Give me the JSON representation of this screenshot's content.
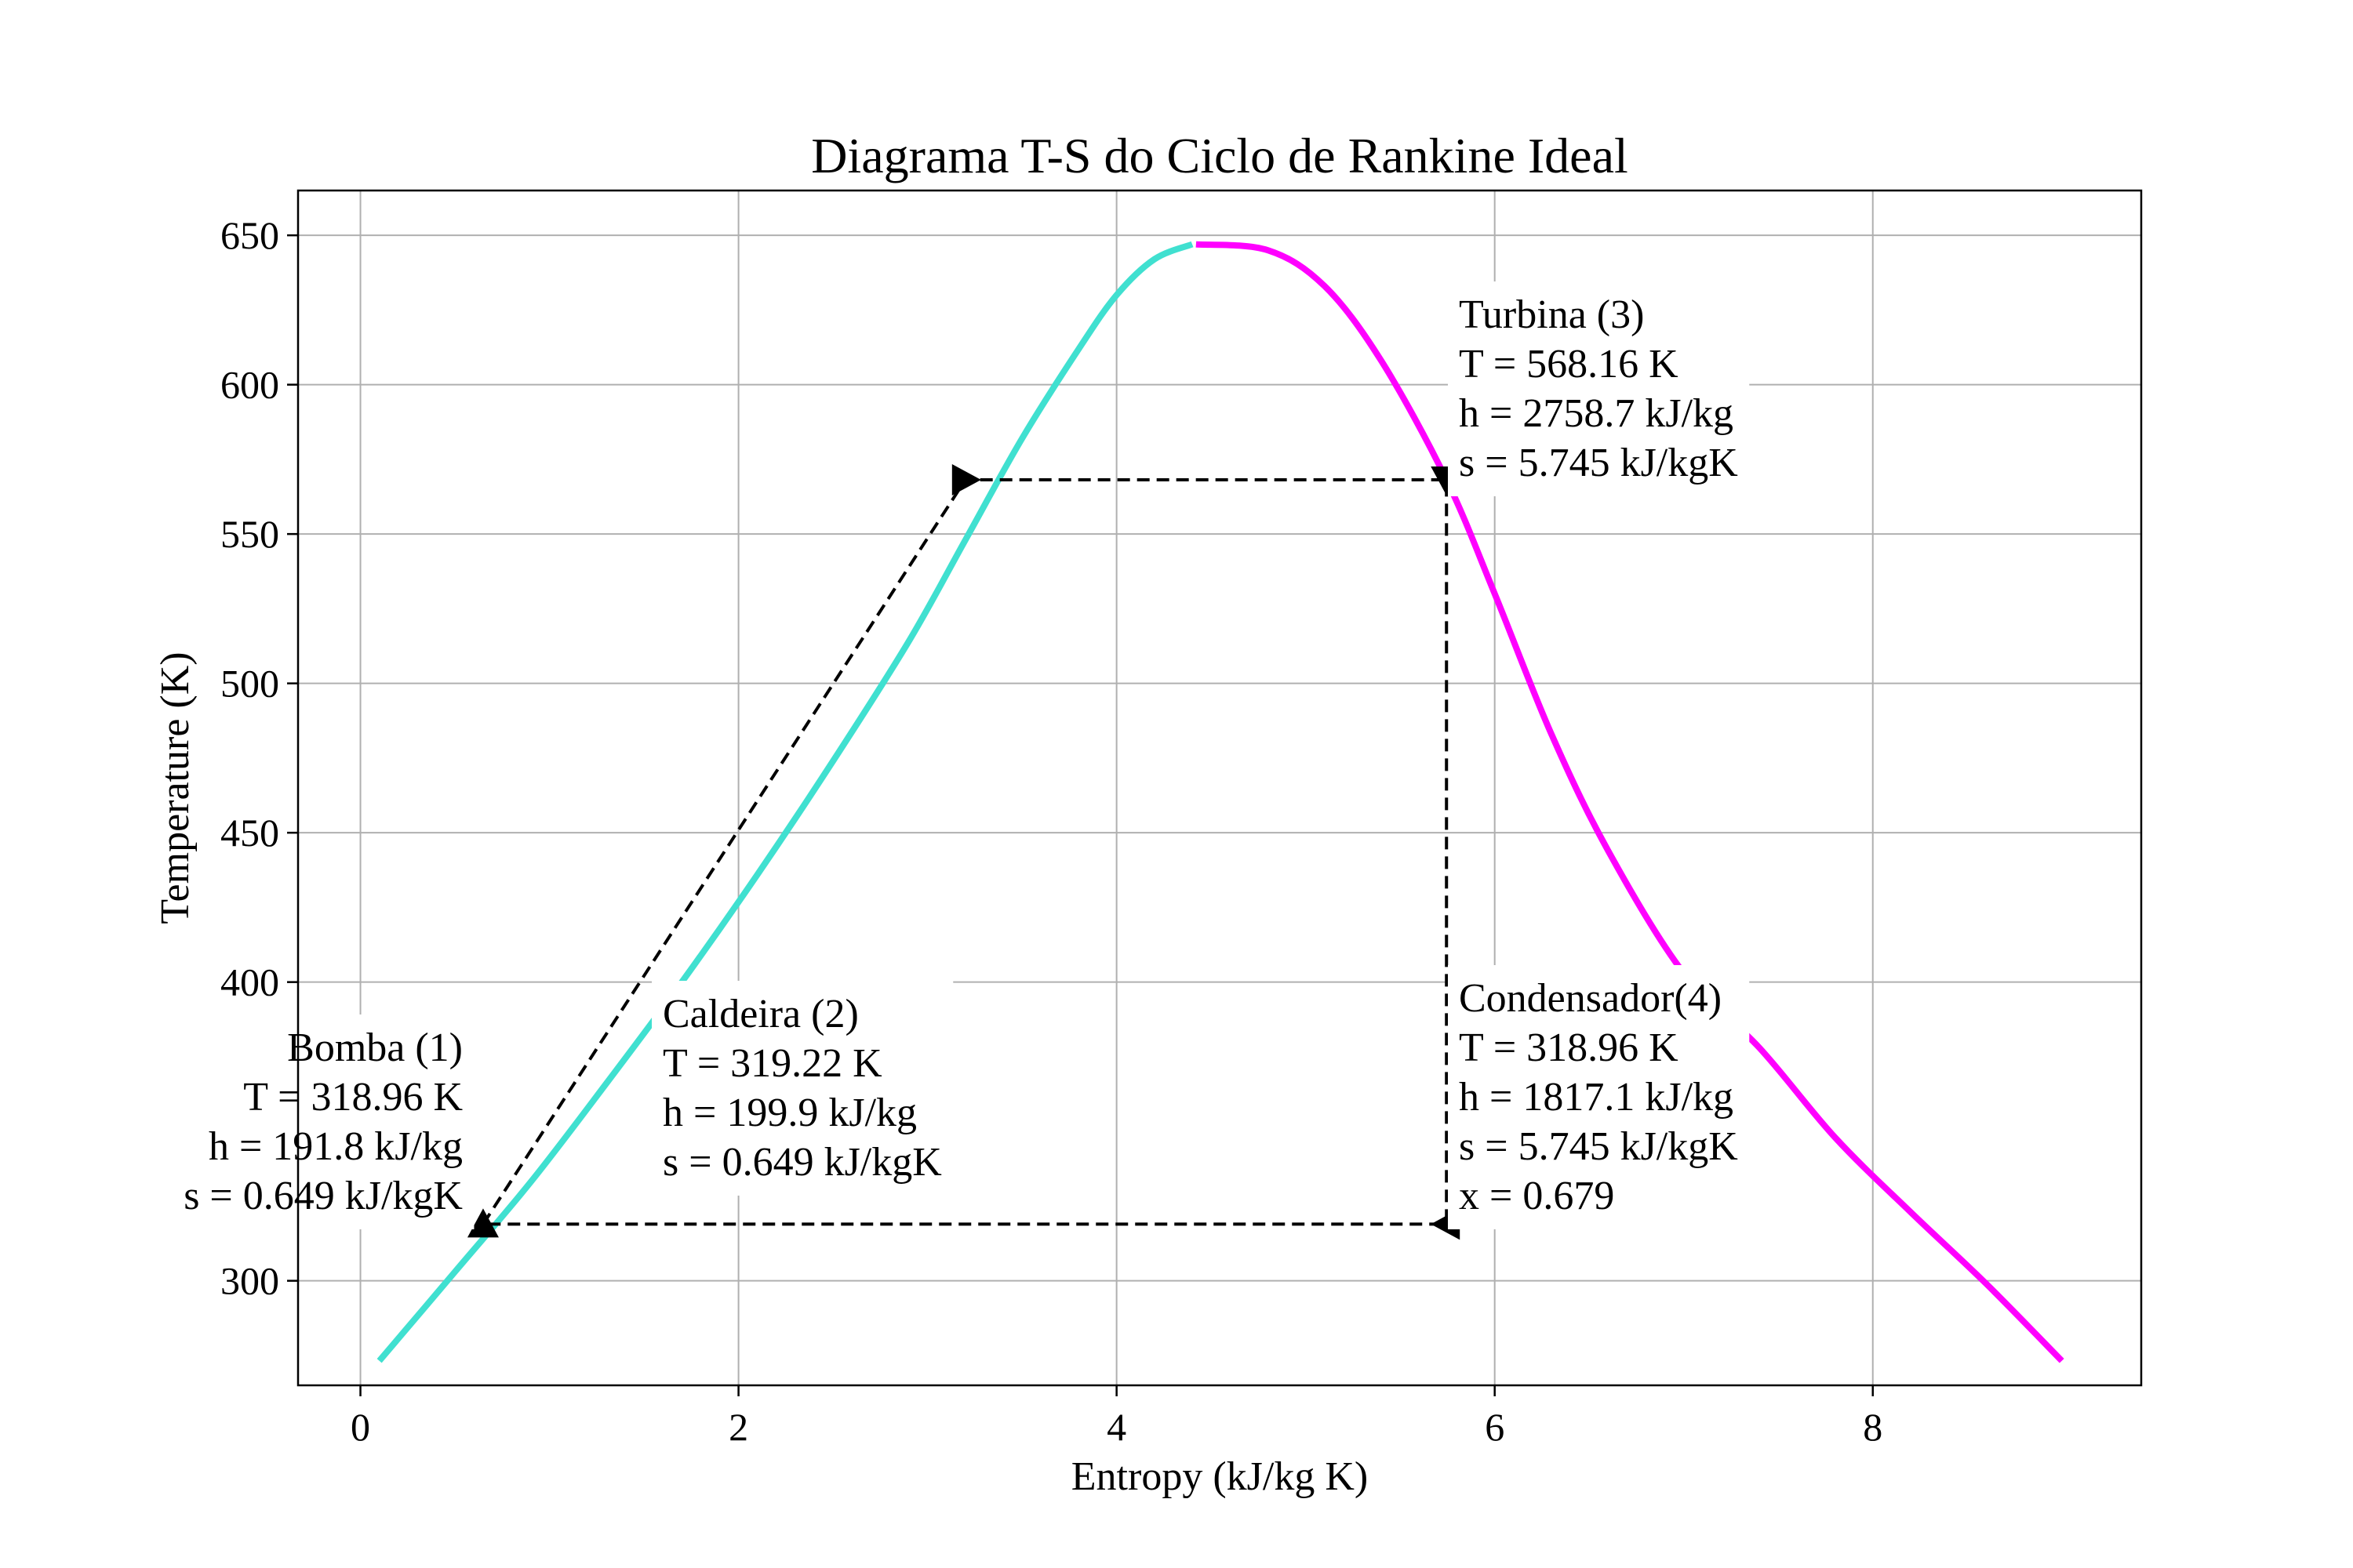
{
  "chart_data": {
    "type": "line",
    "title": "Diagrama T-S do Ciclo de Rankine Ideal",
    "xlabel": "Entropy (kJ/kg K)",
    "ylabel": "Temperature (K)",
    "xlim": [
      -0.33,
      9.42
    ],
    "ylim": [
      265,
      665
    ],
    "xticks": [
      0,
      2,
      4,
      6,
      8
    ],
    "yticks": [
      300,
      400,
      450,
      500,
      550,
      600,
      650
    ],
    "grid": true,
    "series": [
      {
        "role": "saturated-liquid",
        "color": "#40e0d0",
        "points": [
          [
            0.1,
            273.2
          ],
          [
            0.5,
            303
          ],
          [
            0.9,
            333
          ],
          [
            1.3,
            366
          ],
          [
            1.7,
            400
          ],
          [
            2.1,
            436
          ],
          [
            2.5,
            474
          ],
          [
            2.9,
            514
          ],
          [
            3.2,
            548
          ],
          [
            3.5,
            582
          ],
          [
            3.8,
            612
          ],
          [
            4.0,
            630
          ],
          [
            4.2,
            642
          ],
          [
            4.4,
            647
          ]
        ]
      },
      {
        "role": "saturated-vapor",
        "color": "#ff00ff",
        "points": [
          [
            4.42,
            647
          ],
          [
            4.8,
            645
          ],
          [
            5.1,
            633
          ],
          [
            5.4,
            608
          ],
          [
            5.745,
            568.16
          ],
          [
            6.0,
            530
          ],
          [
            6.3,
            483
          ],
          [
            6.6,
            444
          ],
          [
            7.0,
            403
          ],
          [
            7.4,
            378
          ],
          [
            7.8,
            348
          ],
          [
            8.2,
            323
          ],
          [
            8.6,
            299
          ],
          [
            9.0,
            273.2
          ]
        ]
      }
    ],
    "cycle": {
      "color": "#000000",
      "line_style": "dashed",
      "points": [
        {
          "s": 0.649,
          "T": 318.96,
          "marker": "triangle-up"
        },
        {
          "s": 3.2,
          "T": 568.16,
          "marker": "triangle-right"
        },
        {
          "s": 5.745,
          "T": 568.16,
          "marker": "triangle-down"
        },
        {
          "s": 5.745,
          "T": 318.96,
          "marker": "triangle-left"
        },
        {
          "s": 0.649,
          "T": 318.96
        }
      ]
    },
    "annotations": [
      {
        "key": "bomba",
        "align": "end",
        "lines": [
          "Bomba (1)",
          "T = 318.96 K",
          "h = 191.8 kJ/kg",
          "s = 0.649 kJ/kgK"
        ]
      },
      {
        "key": "caldeira",
        "align": "start",
        "lines": [
          "Caldeira (2)",
          "T = 319.22 K",
          "h = 199.9 kJ/kg",
          "s = 0.649 kJ/kgK"
        ]
      },
      {
        "key": "turbina",
        "align": "start",
        "lines": [
          "Turbina (3)",
          "T = 568.16 K",
          "h = 2758.7 kJ/kg",
          "s = 5.745 kJ/kgK"
        ]
      },
      {
        "key": "condensador",
        "align": "start",
        "lines": [
          "Condensador(4)",
          "T = 318.96 K",
          "h = 1817.1 kJ/kg",
          "s = 5.745 kJ/kgK",
          "x = 0.679"
        ]
      }
    ]
  }
}
